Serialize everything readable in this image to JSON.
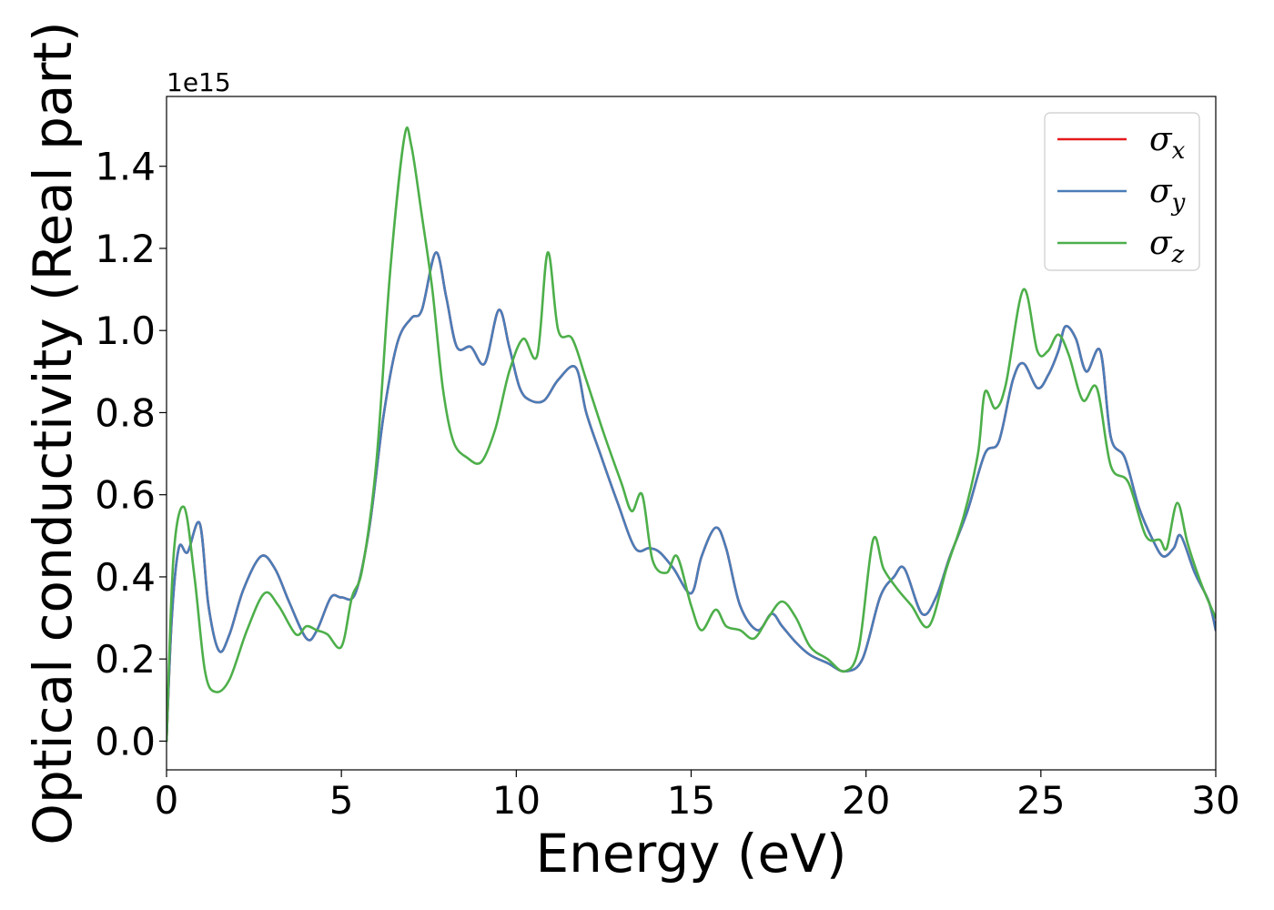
{
  "chart_data": {
    "type": "line",
    "title": "",
    "xlabel": "Energy (eV)",
    "ylabel": "Optical conductivity (Real part)",
    "y_offset_label": "1e15",
    "xlim": [
      0,
      30
    ],
    "ylim": [
      -0.07,
      1.57
    ],
    "xticks": [
      0,
      5,
      10,
      15,
      20,
      25,
      30
    ],
    "xtick_labels": [
      "0",
      "5",
      "10",
      "15",
      "20",
      "25",
      "30"
    ],
    "yticks": [
      0.0,
      0.2,
      0.4,
      0.6,
      0.8,
      1.0,
      1.2,
      1.4
    ],
    "ytick_labels": [
      "0.0",
      "0.2",
      "0.4",
      "0.6",
      "0.8",
      "1.0",
      "1.2",
      "1.4"
    ],
    "grid": false,
    "legend_position": "top-right",
    "series": [
      {
        "name": "σ",
        "sub": "x",
        "color": "#e41a1c",
        "x": [
          0,
          0.15,
          0.35,
          0.6,
          0.95,
          1.2,
          1.5,
          1.8,
          2.2,
          2.7,
          3.1,
          3.5,
          4.0,
          4.3,
          4.7,
          5.0,
          5.4,
          5.8,
          6.2,
          6.6,
          7.0,
          7.3,
          7.7,
          8.0,
          8.3,
          8.7,
          9.1,
          9.5,
          9.8,
          10.1,
          10.4,
          10.8,
          11.2,
          11.7,
          12.0,
          12.4,
          12.9,
          13.4,
          13.8,
          14.1,
          14.5,
          15.0,
          15.3,
          15.7,
          16.0,
          16.4,
          16.9,
          17.3,
          17.6,
          18.0,
          18.4,
          18.9,
          19.4,
          19.9,
          20.4,
          20.8,
          21.1,
          21.6,
          22.0,
          22.4,
          22.9,
          23.4,
          23.8,
          24.2,
          24.5,
          24.9,
          25.2,
          25.5,
          25.7,
          26.0,
          26.3,
          26.7,
          27.0,
          27.4,
          27.8,
          28.2,
          28.5,
          28.8,
          29.0,
          29.4,
          29.8,
          30.0
        ],
        "y": [
          0.0,
          0.3,
          0.47,
          0.46,
          0.53,
          0.33,
          0.22,
          0.26,
          0.37,
          0.45,
          0.42,
          0.34,
          0.25,
          0.27,
          0.35,
          0.35,
          0.36,
          0.52,
          0.79,
          0.97,
          1.03,
          1.05,
          1.19,
          1.08,
          0.96,
          0.96,
          0.92,
          1.05,
          0.96,
          0.86,
          0.83,
          0.83,
          0.88,
          0.91,
          0.8,
          0.7,
          0.58,
          0.47,
          0.47,
          0.46,
          0.42,
          0.36,
          0.45,
          0.52,
          0.47,
          0.33,
          0.27,
          0.31,
          0.28,
          0.24,
          0.21,
          0.19,
          0.17,
          0.2,
          0.35,
          0.4,
          0.42,
          0.31,
          0.35,
          0.45,
          0.56,
          0.7,
          0.73,
          0.88,
          0.92,
          0.86,
          0.89,
          0.95,
          1.01,
          0.98,
          0.9,
          0.95,
          0.74,
          0.69,
          0.57,
          0.49,
          0.45,
          0.47,
          0.5,
          0.41,
          0.34,
          0.27
        ]
      },
      {
        "name": "σ",
        "sub": "y",
        "color": "#4a7db8",
        "x": [
          0,
          0.15,
          0.35,
          0.6,
          0.95,
          1.2,
          1.5,
          1.8,
          2.2,
          2.7,
          3.1,
          3.5,
          4.0,
          4.3,
          4.7,
          5.0,
          5.4,
          5.8,
          6.2,
          6.6,
          7.0,
          7.3,
          7.7,
          8.0,
          8.3,
          8.7,
          9.1,
          9.5,
          9.8,
          10.1,
          10.4,
          10.8,
          11.2,
          11.7,
          12.0,
          12.4,
          12.9,
          13.4,
          13.8,
          14.1,
          14.5,
          15.0,
          15.3,
          15.7,
          16.0,
          16.4,
          16.9,
          17.3,
          17.6,
          18.0,
          18.4,
          18.9,
          19.4,
          19.9,
          20.4,
          20.8,
          21.1,
          21.6,
          22.0,
          22.4,
          22.9,
          23.4,
          23.8,
          24.2,
          24.5,
          24.9,
          25.2,
          25.5,
          25.7,
          26.0,
          26.3,
          26.7,
          27.0,
          27.4,
          27.8,
          28.2,
          28.5,
          28.8,
          29.0,
          29.4,
          29.8,
          30.0
        ],
        "y": [
          0.0,
          0.3,
          0.47,
          0.46,
          0.53,
          0.33,
          0.22,
          0.26,
          0.37,
          0.45,
          0.42,
          0.34,
          0.25,
          0.27,
          0.35,
          0.35,
          0.36,
          0.52,
          0.79,
          0.97,
          1.03,
          1.05,
          1.19,
          1.08,
          0.96,
          0.96,
          0.92,
          1.05,
          0.96,
          0.86,
          0.83,
          0.83,
          0.88,
          0.91,
          0.8,
          0.7,
          0.58,
          0.47,
          0.47,
          0.46,
          0.42,
          0.36,
          0.45,
          0.52,
          0.47,
          0.33,
          0.27,
          0.31,
          0.28,
          0.24,
          0.21,
          0.19,
          0.17,
          0.2,
          0.35,
          0.4,
          0.42,
          0.31,
          0.35,
          0.45,
          0.56,
          0.7,
          0.73,
          0.88,
          0.92,
          0.86,
          0.89,
          0.95,
          1.01,
          0.98,
          0.9,
          0.95,
          0.74,
          0.69,
          0.57,
          0.49,
          0.45,
          0.47,
          0.5,
          0.41,
          0.34,
          0.27
        ]
      },
      {
        "name": "σ",
        "sub": "z",
        "color": "#4daf4a",
        "x": [
          0,
          0.2,
          0.5,
          0.8,
          1.1,
          1.4,
          1.8,
          2.3,
          2.8,
          3.2,
          3.7,
          4.0,
          4.3,
          4.6,
          5.0,
          5.3,
          5.6,
          6.0,
          6.4,
          6.8,
          7.0,
          7.3,
          7.6,
          7.9,
          8.2,
          8.6,
          9.0,
          9.4,
          9.8,
          10.2,
          10.6,
          10.9,
          11.2,
          11.6,
          12.0,
          12.5,
          13.0,
          13.3,
          13.6,
          13.9,
          14.3,
          14.6,
          15.0,
          15.3,
          15.7,
          16.0,
          16.4,
          16.8,
          17.2,
          17.6,
          18.0,
          18.4,
          18.9,
          19.4,
          19.8,
          20.2,
          20.5,
          20.9,
          21.3,
          21.8,
          22.3,
          22.8,
          23.2,
          23.4,
          23.7,
          24.0,
          24.5,
          24.9,
          25.2,
          25.5,
          25.8,
          26.2,
          26.6,
          27.0,
          27.5,
          28.0,
          28.4,
          28.6,
          28.9,
          29.2,
          29.6,
          30.0
        ],
        "y": [
          0.0,
          0.45,
          0.57,
          0.4,
          0.17,
          0.12,
          0.15,
          0.27,
          0.36,
          0.33,
          0.26,
          0.28,
          0.27,
          0.26,
          0.23,
          0.35,
          0.42,
          0.68,
          1.15,
          1.47,
          1.45,
          1.28,
          1.1,
          0.86,
          0.73,
          0.69,
          0.68,
          0.76,
          0.9,
          0.98,
          0.94,
          1.19,
          1.0,
          0.98,
          0.88,
          0.75,
          0.63,
          0.56,
          0.6,
          0.44,
          0.41,
          0.45,
          0.33,
          0.27,
          0.32,
          0.28,
          0.27,
          0.25,
          0.3,
          0.34,
          0.3,
          0.23,
          0.2,
          0.17,
          0.23,
          0.49,
          0.42,
          0.37,
          0.33,
          0.28,
          0.42,
          0.55,
          0.7,
          0.85,
          0.81,
          0.87,
          1.1,
          0.95,
          0.95,
          0.99,
          0.94,
          0.83,
          0.86,
          0.67,
          0.63,
          0.5,
          0.49,
          0.47,
          0.58,
          0.48,
          0.38,
          0.3
        ]
      }
    ]
  }
}
